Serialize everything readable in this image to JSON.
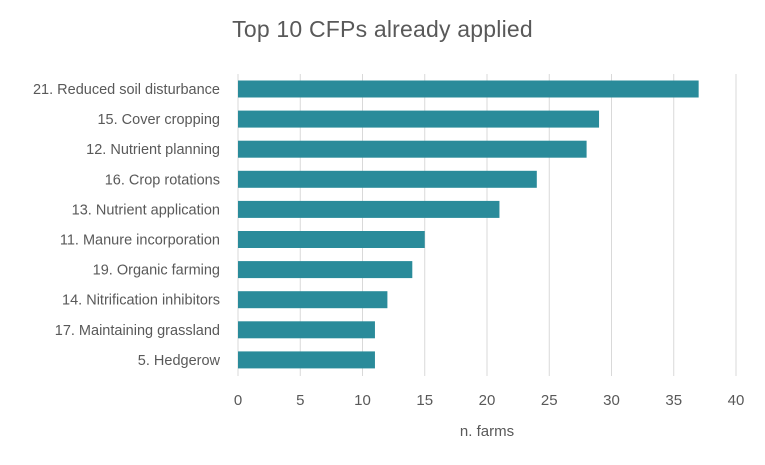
{
  "chart_data": {
    "type": "bar",
    "orientation": "horizontal",
    "title": "Top 10 CFPs already applied",
    "xlabel": "n. farms",
    "ylabel": "",
    "xlim": [
      0,
      40
    ],
    "x_ticks": [
      0,
      5,
      10,
      15,
      20,
      25,
      30,
      35,
      40
    ],
    "categories": [
      "21. Reduced soil disturbance",
      "15. Cover cropping",
      "12. Nutrient planning",
      "16. Crop rotations",
      "13. Nutrient application",
      "11. Manure incorporation",
      "19. Organic farming",
      "14. Nitrification inhibitors",
      "17. Maintaining grassland",
      "5. Hedgerow"
    ],
    "values": [
      37,
      29,
      28,
      24,
      21,
      15,
      14,
      12,
      11,
      11
    ],
    "bar_color": "#2a8b9a",
    "grid": true,
    "legend": "none"
  }
}
